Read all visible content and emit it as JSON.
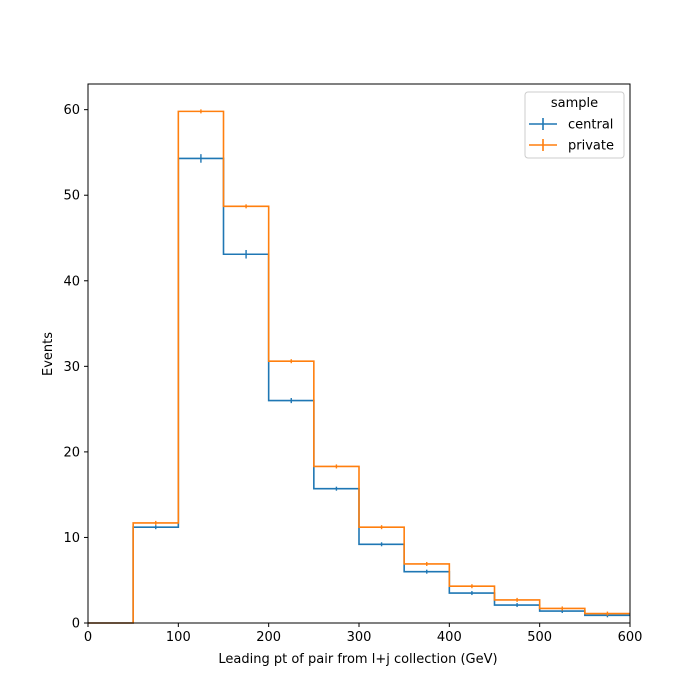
{
  "chart_data": {
    "type": "histogram-step",
    "xlabel": "Leading pt of pair from l+j collection (GeV)",
    "ylabel": "Events",
    "xlim": [
      0,
      600
    ],
    "ylim": [
      0,
      63
    ],
    "xticks": [
      0,
      100,
      200,
      300,
      400,
      500,
      600
    ],
    "yticks": [
      0,
      10,
      20,
      30,
      40,
      50,
      60
    ],
    "bin_edges": [
      0,
      50,
      100,
      150,
      200,
      250,
      300,
      350,
      400,
      450,
      500,
      550,
      600
    ],
    "legend": {
      "title": "sample",
      "placement": "top-right"
    },
    "series": [
      {
        "name": "central",
        "color": "#1f77b4",
        "values": [
          0,
          11.2,
          54.3,
          43.1,
          26.0,
          15.7,
          9.2,
          6.0,
          3.5,
          2.1,
          1.4,
          0.9
        ],
        "errors": [
          0,
          0.2,
          0.5,
          0.5,
          0.3,
          0.2,
          0.15,
          0.12,
          0.1,
          0.08,
          0.06,
          0.05
        ]
      },
      {
        "name": "private",
        "color": "#ff7f0e",
        "values": [
          0,
          11.7,
          59.8,
          48.7,
          30.6,
          18.3,
          11.2,
          6.9,
          4.3,
          2.7,
          1.7,
          1.1
        ],
        "errors": [
          0,
          0.05,
          0.1,
          0.1,
          0.08,
          0.06,
          0.05,
          0.04,
          0.03,
          0.03,
          0.02,
          0.02
        ]
      }
    ]
  }
}
